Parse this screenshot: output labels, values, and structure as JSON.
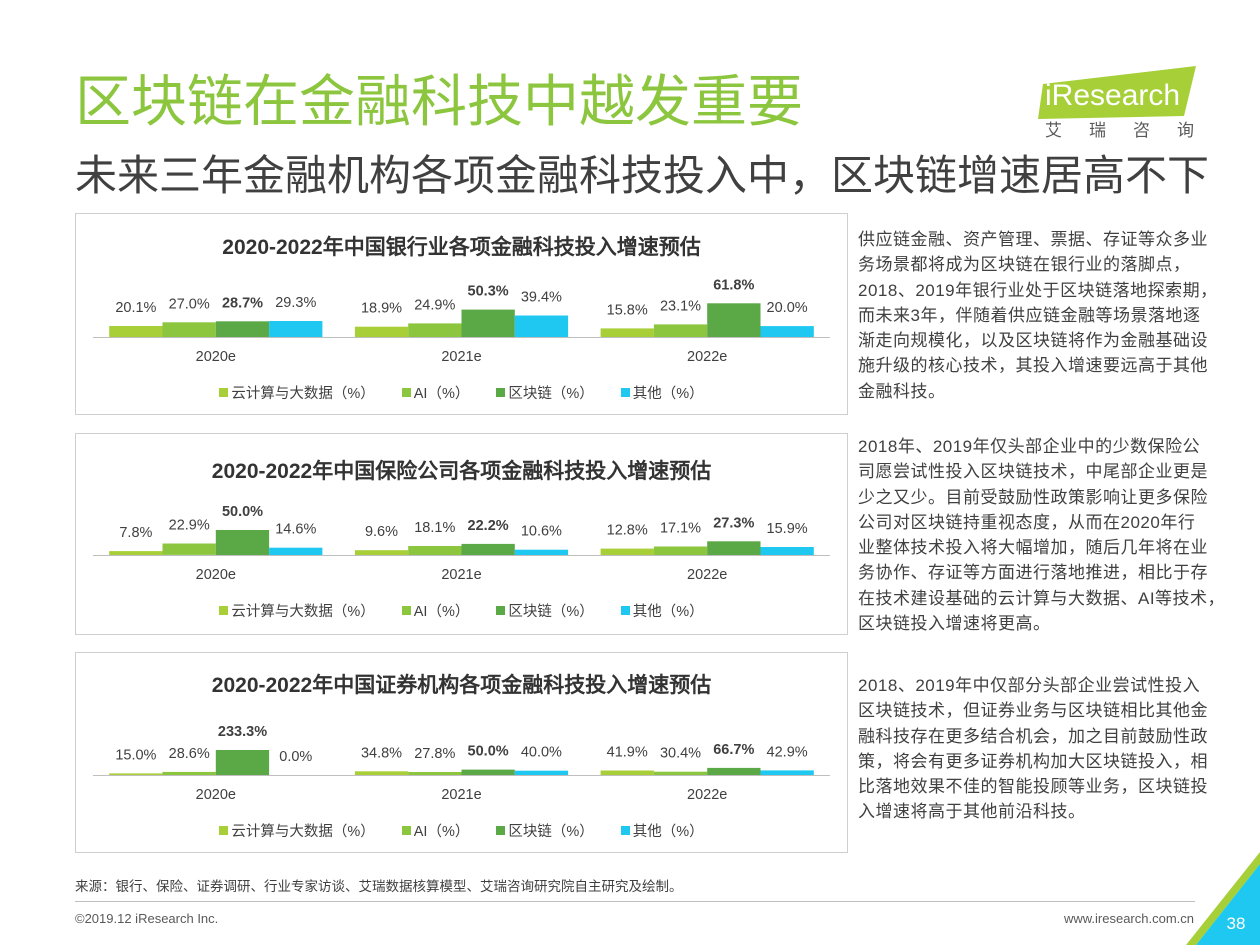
{
  "page": {
    "title": "区块链在金融科技中越发重要",
    "subtitle": "未来三年金融机构各项金融科技投入中，区块链增速居高不下"
  },
  "logo": {
    "wordmark": "iResearch",
    "tagline": "艾瑞咨询"
  },
  "colors": {
    "title": "#8cc63e",
    "text": "#404040",
    "logo_green": "#a6cf38",
    "corner_lime": "#a6cf38",
    "corner_cyan": "#1ec8f0"
  },
  "chart_data": [
    {
      "type": "bar",
      "title": "2020-2022年中国银行业各项金融科技投入增速预估",
      "categories": [
        "2020e",
        "2021e",
        "2022e"
      ],
      "series": [
        {
          "name": "云计算与大数据（%）",
          "color": "#a8cf38",
          "values": [
            20.1,
            18.9,
            15.8
          ],
          "labels": [
            "20.1%",
            "18.9%",
            "15.8%"
          ]
        },
        {
          "name": "AI（%）",
          "color": "#8cc63f",
          "values": [
            27.0,
            24.9,
            23.1
          ],
          "labels": [
            "27.0%",
            "24.9%",
            "23.1%"
          ]
        },
        {
          "name": "区块链（%）",
          "color": "#5aa846",
          "values": [
            28.7,
            50.3,
            61.8
          ],
          "labels": [
            "28.7%",
            "50.3%",
            "61.8%"
          ]
        },
        {
          "name": "其他（%）",
          "color": "#1ec8f0",
          "values": [
            29.3,
            39.4,
            20.0
          ],
          "labels": [
            "29.3%",
            "39.4%",
            "20.0%"
          ]
        }
      ],
      "ylim": [
        0,
        110
      ],
      "legend": "bottom",
      "grid": false
    },
    {
      "type": "bar",
      "title": "2020-2022年中国保险公司各项金融科技投入增速预估",
      "categories": [
        "2020e",
        "2021e",
        "2022e"
      ],
      "series": [
        {
          "name": "云计算与大数据（%）",
          "color": "#a8cf38",
          "values": [
            7.8,
            9.6,
            12.8
          ],
          "labels": [
            "7.8%",
            "9.6%",
            "12.8%"
          ]
        },
        {
          "name": "AI（%）",
          "color": "#8cc63f",
          "values": [
            22.9,
            18.1,
            17.1
          ],
          "labels": [
            "22.9%",
            "18.1%",
            "17.1%"
          ]
        },
        {
          "name": "区块链（%）",
          "color": "#5aa846",
          "values": [
            50.0,
            22.2,
            27.3
          ],
          "labels": [
            "50.0%",
            "22.2%",
            "27.3%"
          ]
        },
        {
          "name": "其他（%）",
          "color": "#1ec8f0",
          "values": [
            14.6,
            10.6,
            15.9
          ],
          "labels": [
            "14.6%",
            "10.6%",
            "15.9%"
          ]
        }
      ],
      "ylim": [
        0,
        120
      ],
      "legend": "bottom",
      "grid": false
    },
    {
      "type": "bar",
      "title": "2020-2022年中国证券机构各项金融科技投入增速预估",
      "categories": [
        "2020e",
        "2021e",
        "2022e"
      ],
      "series": [
        {
          "name": "云计算与大数据（%）",
          "color": "#a8cf38",
          "values": [
            15.0,
            34.8,
            41.9
          ],
          "labels": [
            "15.0%",
            "34.8%",
            "41.9%"
          ]
        },
        {
          "name": "AI（%）",
          "color": "#8cc63f",
          "values": [
            28.6,
            27.8,
            30.4
          ],
          "labels": [
            "28.6%",
            "27.8%",
            "30.4%"
          ]
        },
        {
          "name": "区块链（%）",
          "color": "#5aa846",
          "values": [
            233.3,
            50.0,
            66.7
          ],
          "labels": [
            "233.3%",
            "50.0%",
            "66.7%"
          ]
        },
        {
          "name": "其他（%）",
          "color": "#1ec8f0",
          "values": [
            0.0,
            40.0,
            42.9
          ],
          "labels": [
            "0.0%",
            "40.0%",
            "42.9%"
          ]
        }
      ],
      "ylim": [
        0,
        560
      ],
      "legend": "bottom",
      "grid": false
    }
  ],
  "notes": [
    {
      "lines": [
        "供应链金融、资产管理、票据、存证等众多业",
        "务场景都将成为区块链在银行业的落脚点，",
        "2018、2019年银行业处于区块链落地探索期，",
        "而未来3年，伴随着供应链金融等场景落地逐",
        "渐走向规模化，以及区块链将作为金融基础设",
        "施升级的核心技术，其投入增速要远高于其他",
        "金融科技。"
      ]
    },
    {
      "lines": [
        "2018年、2019年仅头部企业中的少数保险公",
        "司愿尝试性投入区块链技术，中尾部企业更是",
        "少之又少。目前受鼓励性政策影响让更多保险",
        "公司对区块链持重视态度，从而在2020年行",
        "业整体技术投入将大幅增加，随后几年将在业",
        "务协作、存证等方面进行落地推进，相比于存",
        "在技术建设基础的云计算与大数据、AI等技术，",
        "区块链投入增速将更高。"
      ]
    },
    {
      "lines": [
        "2018、2019年中仅部分头部企业尝试性投入",
        "区块链技术，但证券业务与区块链相比其他金",
        "融科技存在更多结合机会，加之目前鼓励性政",
        "策，将会有更多证券机构加大区块链投入，相",
        "比落地效果不佳的智能投顾等业务，区块链投",
        "入增速将高于其他前沿科技。"
      ]
    }
  ],
  "footer": {
    "source": "来源：银行、保险、证券调研、行业专家访谈、艾瑞数据核算模型、艾瑞咨询研究院自主研究及绘制。",
    "copyright": "©2019.12 iResearch Inc.",
    "website": "www.iresearch.com.cn",
    "page_number": "38"
  }
}
